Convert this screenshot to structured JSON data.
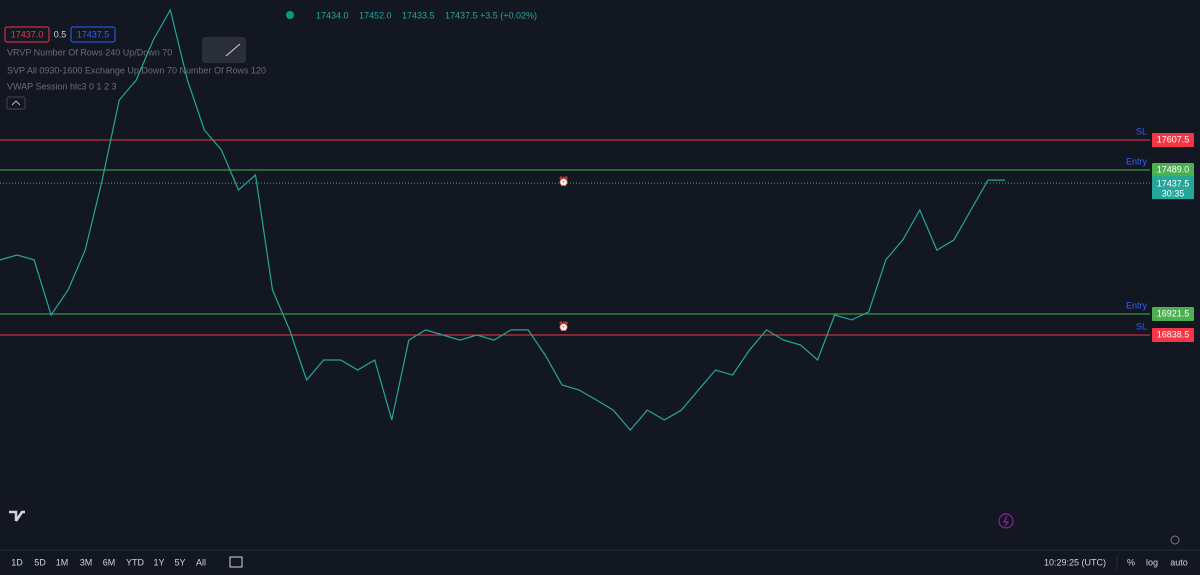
{
  "legend": {
    "open": "17434.0",
    "high": "17452.0",
    "low": "17433.5",
    "close": "17437.5",
    "change": "+3.5 (+0.02%)"
  },
  "trade_buttons": {
    "sell": "17437.0",
    "spread": "0.5",
    "buy": "17437.5"
  },
  "indicators": [
    "VRVP Number Of Rows 240 Up/Down 70",
    "SVP All 0930-1600 Exchange Up/Down 70 Number Of Rows 120",
    "VWAP Session hlc3 0 1 2 3"
  ],
  "levels": [
    {
      "tag": "SL",
      "price": "17607.5",
      "color": "#f23645"
    },
    {
      "tag": "Entry",
      "price": "17489.0",
      "color": "#4caf50"
    },
    {
      "tag": "Entry",
      "price": "16921.5",
      "color": "#4caf50"
    },
    {
      "tag": "SL",
      "price": "16838.5",
      "color": "#f23645"
    }
  ],
  "current_price": {
    "price": "17437.5",
    "countdown": "30:35"
  },
  "price_series": [
    17134.5,
    17154,
    17134.5,
    16917.5,
    17016,
    17173.5,
    17449.5,
    17765,
    17844,
    18002,
    18120,
    17844,
    17646.5,
    17568,
    17410.5,
    17469.5,
    17016,
    16858.5,
    16661,
    16740,
    16740,
    16700.5,
    16740,
    16503.5,
    16818.5,
    16858.5,
    16838.5,
    16818.5,
    16838.5,
    16818.5,
    16858.5,
    16858.5,
    16759.5,
    16641.5,
    16621.5,
    16582.5,
    16542.5,
    16463.5,
    16542.5,
    16503.5,
    16542.5,
    16621.5,
    16700.5,
    16680.5,
    16779.5,
    16858.5,
    16818.5,
    16799,
    16740,
    16917.5,
    16898,
    16929.5,
    17134.5,
    17213.5,
    17331.5,
    17173.5,
    17213.5,
    17331.5,
    17449.5,
    17449.5
  ],
  "timeframes": [
    "1D",
    "5D",
    "1M",
    "3M",
    "6M",
    "YTD",
    "1Y",
    "5Y",
    "All"
  ],
  "clock": "10:29:25 (UTC)",
  "scale_options": [
    "%",
    "log",
    "auto"
  ]
}
